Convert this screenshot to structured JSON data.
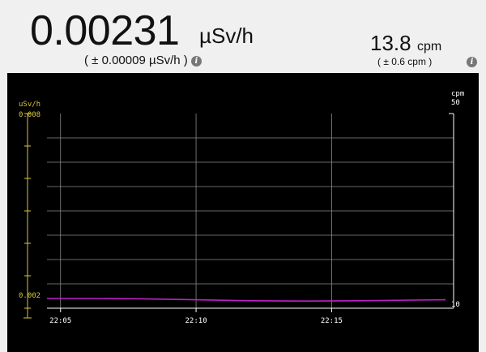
{
  "dose": {
    "value": "0.00231",
    "unit": "µSv/h",
    "error": "( ± 0.00009 µSv/h )"
  },
  "count_rate": {
    "value": "13.8",
    "unit": "cpm",
    "error": "( ± 0.6 cpm )"
  },
  "icons": {
    "dose_info": "info-icon",
    "cpm_info": "info-icon"
  },
  "colors": {
    "panel_bg": "#000000",
    "grid": "#8a8a8a",
    "left_axis": "#d6c63c",
    "right_axis": "#ffffff",
    "series": "#c020c8"
  },
  "chart_data": {
    "type": "line",
    "left_axis": {
      "label": "uSv/h",
      "ylim": [
        0.002,
        0.008
      ],
      "ticks": [
        "0.008",
        "0.002"
      ]
    },
    "right_axis": {
      "label": "cpm",
      "ylim": [
        10,
        50
      ],
      "ticks": [
        "50",
        "10"
      ]
    },
    "x_ticks": [
      "22:05",
      "22:10",
      "22:15"
    ],
    "xlim": [
      "22:04.5",
      "22:19.5"
    ],
    "grid": true,
    "series": [
      {
        "x": [
          "22:04.5",
          "22:06",
          "22:08",
          "22:10",
          "22:12",
          "22:14",
          "22:16",
          "22:18",
          "22:19.2"
        ],
        "values": [
          0.0023,
          0.0023,
          0.00229,
          0.00226,
          0.00223,
          0.00222,
          0.00223,
          0.00225,
          0.00226
        ]
      }
    ]
  }
}
